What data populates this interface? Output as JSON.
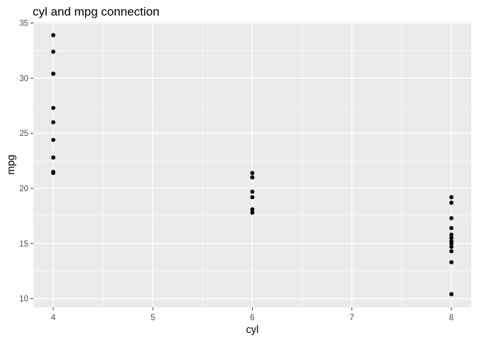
{
  "chart_data": {
    "type": "scatter",
    "title": "cyl and mpg connection",
    "xlabel": "cyl",
    "ylabel": "mpg",
    "xlim": [
      3.8,
      8.2
    ],
    "ylim": [
      9.2,
      35.1
    ],
    "x_ticks": [
      4,
      5,
      6,
      7,
      8
    ],
    "y_ticks": [
      10,
      15,
      20,
      25,
      30,
      35
    ],
    "grid": true,
    "legend": "none",
    "colors": {
      "panel": "#ebebeb",
      "grid": "#ffffff",
      "point": "#000000"
    },
    "points": [
      {
        "x": 6,
        "y": 21.0
      },
      {
        "x": 6,
        "y": 21.0
      },
      {
        "x": 4,
        "y": 22.8
      },
      {
        "x": 6,
        "y": 21.4
      },
      {
        "x": 8,
        "y": 18.7
      },
      {
        "x": 6,
        "y": 18.1
      },
      {
        "x": 8,
        "y": 14.3
      },
      {
        "x": 4,
        "y": 24.4
      },
      {
        "x": 4,
        "y": 22.8
      },
      {
        "x": 6,
        "y": 19.2
      },
      {
        "x": 6,
        "y": 17.8
      },
      {
        "x": 8,
        "y": 16.4
      },
      {
        "x": 8,
        "y": 17.3
      },
      {
        "x": 8,
        "y": 15.2
      },
      {
        "x": 8,
        "y": 10.4
      },
      {
        "x": 8,
        "y": 10.4
      },
      {
        "x": 8,
        "y": 14.7
      },
      {
        "x": 4,
        "y": 32.4
      },
      {
        "x": 4,
        "y": 30.4
      },
      {
        "x": 4,
        "y": 33.9
      },
      {
        "x": 4,
        "y": 21.5
      },
      {
        "x": 8,
        "y": 15.5
      },
      {
        "x": 8,
        "y": 15.2
      },
      {
        "x": 8,
        "y": 13.3
      },
      {
        "x": 8,
        "y": 19.2
      },
      {
        "x": 4,
        "y": 27.3
      },
      {
        "x": 4,
        "y": 26.0
      },
      {
        "x": 4,
        "y": 30.4
      },
      {
        "x": 8,
        "y": 15.8
      },
      {
        "x": 6,
        "y": 19.7
      },
      {
        "x": 8,
        "y": 15.0
      },
      {
        "x": 4,
        "y": 21.4
      }
    ]
  }
}
